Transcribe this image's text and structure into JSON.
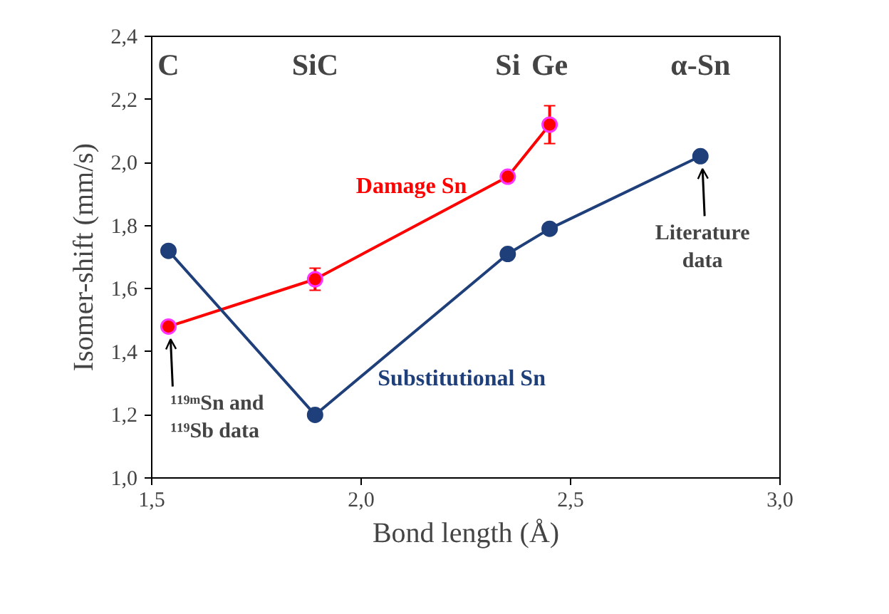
{
  "chart_data": {
    "type": "line",
    "xlabel": "Bond length (Å)",
    "ylabel": "Isomer-shift (mm/s)",
    "xlim": [
      1.5,
      3.0
    ],
    "ylim": [
      1.0,
      2.4
    ],
    "xticks": [
      {
        "value": 1.5,
        "label": "1,5"
      },
      {
        "value": 2.0,
        "label": "2,0"
      },
      {
        "value": 2.5,
        "label": "2,5"
      },
      {
        "value": 3.0,
        "label": "3,0"
      }
    ],
    "yticks": [
      {
        "value": 1.0,
        "label": "1,0"
      },
      {
        "value": 1.2,
        "label": "1,2"
      },
      {
        "value": 1.4,
        "label": "1,4"
      },
      {
        "value": 1.6,
        "label": "1,6"
      },
      {
        "value": 1.8,
        "label": "1,8"
      },
      {
        "value": 2.0,
        "label": "2,0"
      },
      {
        "value": 2.2,
        "label": "2,2"
      },
      {
        "value": 2.4,
        "label": "2,4"
      }
    ],
    "grid": false,
    "legend": false,
    "marker": "circle",
    "line_style": "solid",
    "series": [
      {
        "name": "Damage Sn",
        "color": "#ff0000",
        "x": [
          1.54,
          1.89,
          2.35,
          2.45
        ],
        "values": [
          1.48,
          1.63,
          1.955,
          2.12
        ],
        "errors": [
          null,
          0.035,
          null,
          0.06
        ]
      },
      {
        "name": "Substitutional Sn",
        "color": "#1f3f7a",
        "x": [
          1.54,
          1.89,
          2.35,
          2.45,
          2.81
        ],
        "values": [
          1.72,
          1.2,
          1.71,
          1.79,
          2.02
        ]
      }
    ],
    "annotations": [
      "C",
      "SiC",
      "Si",
      "Ge",
      "α-Sn",
      {
        "text": "¹¹⁹ᵐSn and ¹¹⁹Sb data",
        "x": 1.545,
        "y": 1.44
      },
      {
        "text": "Literature data",
        "x": 2.815,
        "y": 1.98
      }
    ]
  }
}
